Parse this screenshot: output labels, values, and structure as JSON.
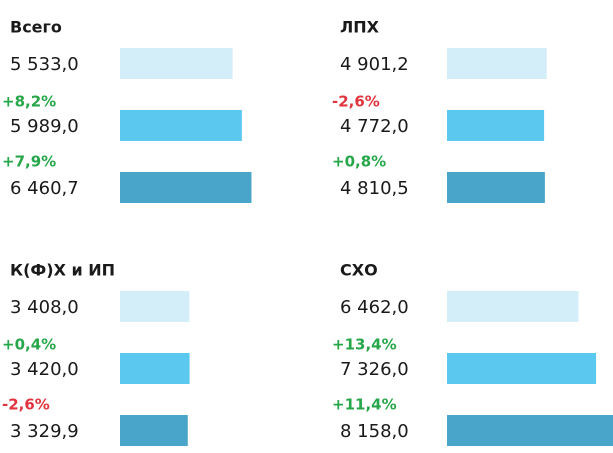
{
  "chart_data": [
    {
      "type": "bar",
      "title": "Всего",
      "values": [
        5533.0,
        5989.0,
        6460.7
      ],
      "value_labels": [
        "5 533,0",
        "5 989,0",
        "6 460,7"
      ],
      "colors": [
        "#d3eef8",
        "#5bc8f0",
        "#49a5c9"
      ],
      "annotations": [
        "+8,2%",
        "+7,9%"
      ],
      "annotation_colors": [
        "#27a64a",
        "#27a64a"
      ]
    },
    {
      "type": "bar",
      "title": "ЛПХ",
      "values": [
        4901.2,
        4772.0,
        4810.5
      ],
      "value_labels": [
        "4 901,2",
        "4 772,0",
        "4 810,5"
      ],
      "colors": [
        "#d3eef8",
        "#5bc8f0",
        "#49a5c9"
      ],
      "annotations": [
        "-2,6%",
        "+0,8%"
      ],
      "annotation_colors": [
        "#e0353f",
        "#27a64a"
      ]
    },
    {
      "type": "bar",
      "title": "К(Ф)Х и ИП",
      "values": [
        3408.0,
        3420.0,
        3329.9
      ],
      "value_labels": [
        "3 408,0",
        "3 420,0",
        "3 329,9"
      ],
      "colors": [
        "#d3eef8",
        "#5bc8f0",
        "#49a5c9"
      ],
      "annotations": [
        "+0,4%",
        "-2,6%"
      ],
      "annotation_colors": [
        "#27a64a",
        "#e0353f"
      ]
    },
    {
      "type": "bar",
      "title": "СХО",
      "values": [
        6462.0,
        7326.0,
        8158.0
      ],
      "value_labels": [
        "6 462,0",
        "7 326,0",
        "8 158,0"
      ],
      "colors": [
        "#d3eef8",
        "#5bc8f0",
        "#49a5c9"
      ],
      "annotations": [
        "+13,4%",
        "+11,4%"
      ],
      "annotation_colors": [
        "#27a64a",
        "#27a64a"
      ]
    }
  ]
}
